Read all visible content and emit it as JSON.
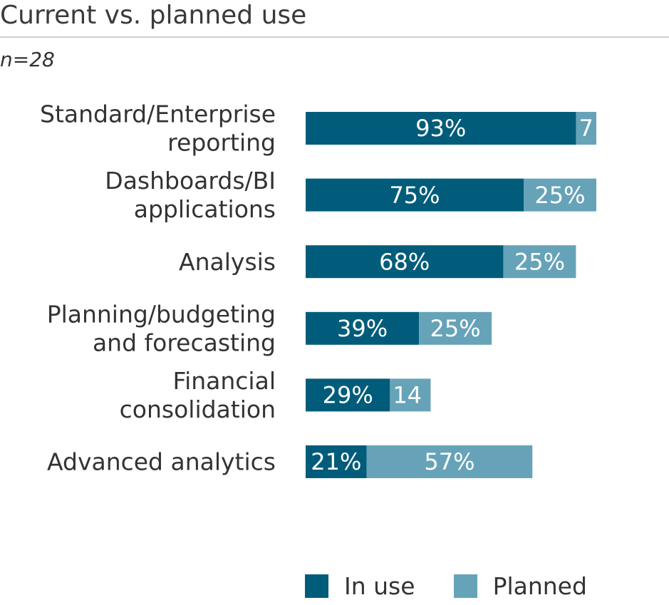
{
  "chart_data": {
    "type": "bar",
    "orientation": "horizontal",
    "stacked": true,
    "title": "Current vs. planned use",
    "subtitle": "n=28",
    "categories": [
      [
        "Standard/Enterprise",
        "reporting"
      ],
      [
        "Dashboards/BI",
        "applications"
      ],
      [
        "Analysis"
      ],
      [
        "Planning/budgeting",
        "and forecasting"
      ],
      [
        "Financial",
        "consolidation"
      ],
      [
        "Advanced analytics"
      ]
    ],
    "series": [
      {
        "name": "In use",
        "color": "#005c7a",
        "values": [
          93,
          75,
          68,
          39,
          29,
          21
        ],
        "labels": [
          "93%",
          "75%",
          "68%",
          "39%",
          "29%",
          "21%"
        ]
      },
      {
        "name": "Planned",
        "color": "#66a3b8",
        "values": [
          7,
          25,
          25,
          25,
          14,
          57
        ],
        "labels": [
          "7",
          "25%",
          "25%",
          "25%",
          "14",
          "57%"
        ]
      }
    ],
    "xlim": [
      0,
      100
    ],
    "grid": false,
    "legend_position": "bottom"
  }
}
